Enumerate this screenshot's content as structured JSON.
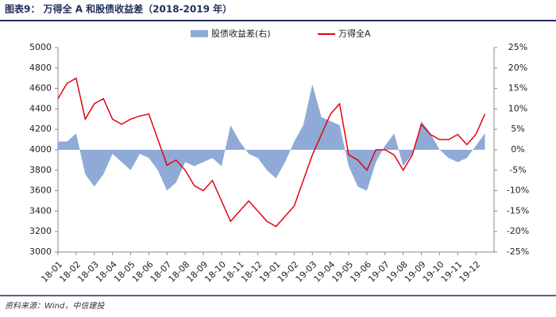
{
  "chart_data": {
    "type": "combo",
    "title": "图表9： 万得全 A 和股债收益差（2018-2019 年）",
    "source": "资料来源：Wind，中信建投",
    "categories": [
      "18-01",
      null,
      "18-02",
      null,
      "18-03",
      null,
      "18-04",
      null,
      "18-05",
      null,
      "18-06",
      null,
      "18-07",
      null,
      "18-08",
      null,
      "18-09",
      null,
      "18-10",
      null,
      "18-11",
      null,
      "18-12",
      null,
      "19-01",
      null,
      "19-02",
      null,
      "19-03",
      null,
      "19-04",
      null,
      "19-05",
      null,
      "19-06",
      null,
      "19-07",
      null,
      "19-08",
      null,
      "19-09",
      null,
      "19-10",
      null,
      "19-11",
      null,
      "19-12",
      null
    ],
    "series": [
      {
        "name": "股债收益差(右)",
        "type": "area",
        "axis": "y2",
        "color": "#8faad6",
        "values": [
          2,
          2,
          4,
          -6,
          -9,
          -6,
          -1,
          -3,
          -5,
          -1,
          -2,
          -5,
          -10,
          -8,
          -3,
          -4,
          -3,
          -2,
          -4,
          6,
          2,
          -1,
          -2,
          -5,
          -7,
          -3,
          2,
          6,
          16,
          8,
          7,
          6,
          -4,
          -9,
          -10,
          -3,
          1,
          4,
          -4,
          -1,
          7,
          4,
          0,
          -2,
          -3,
          -2,
          1,
          4
        ]
      },
      {
        "name": "万得全A",
        "type": "line",
        "color": "#e60012",
        "values": [
          4500,
          4650,
          4700,
          4300,
          4450,
          4500,
          4300,
          4250,
          4300,
          4330,
          4350,
          4100,
          3850,
          3900,
          3800,
          3650,
          3600,
          3700,
          3500,
          3300,
          3400,
          3500,
          3400,
          3300,
          3250,
          3350,
          3450,
          3700,
          3950,
          4150,
          4350,
          4450,
          3950,
          3900,
          3800,
          4000,
          4000,
          3950,
          3800,
          3950,
          4250,
          4150,
          4100,
          4100,
          4150,
          4050,
          4150,
          4350
        ]
      }
    ],
    "ylim": [
      3000,
      5000
    ],
    "yticks": [
      3000,
      3200,
      3400,
      3600,
      3800,
      4000,
      4200,
      4400,
      4600,
      4800,
      5000
    ],
    "y2lim": [
      -25,
      25
    ],
    "y2ticks": [
      {
        "value": -25,
        "label": "-25%"
      },
      {
        "value": -20,
        "label": "-20%"
      },
      {
        "value": -15,
        "label": "-15%"
      },
      {
        "value": -10,
        "label": "-10%"
      },
      {
        "value": -5,
        "label": "-5%"
      },
      {
        "value": 0,
        "label": "0%"
      },
      {
        "value": 5,
        "label": "5%"
      },
      {
        "value": 10,
        "label": "10%"
      },
      {
        "value": 15,
        "label": "15%"
      },
      {
        "value": 20,
        "label": "20%"
      },
      {
        "value": 25,
        "label": "25%"
      }
    ],
    "grid": false,
    "legend": "top"
  }
}
